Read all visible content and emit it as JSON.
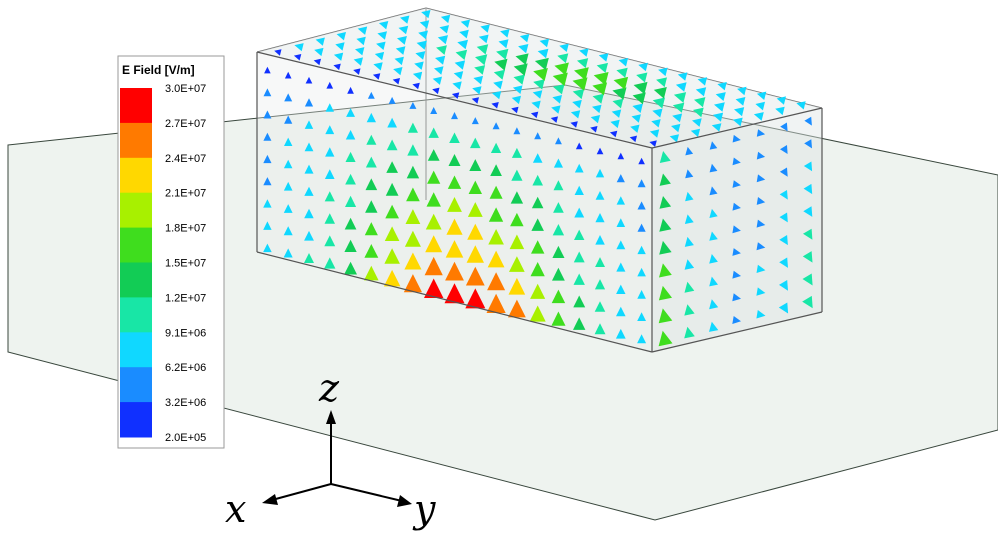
{
  "legend": {
    "title": "E Field [V/m]",
    "ticks": [
      "3.0E+07",
      "2.7E+07",
      "2.4E+07",
      "2.1E+07",
      "1.8E+07",
      "1.5E+07",
      "1.2E+07",
      "9.1E+06",
      "6.2E+06",
      "3.2E+06",
      "2.0E+05"
    ],
    "colors": [
      "#ff0000",
      "#ff7a00",
      "#ffd800",
      "#a8f000",
      "#3fdd1e",
      "#12cc55",
      "#18e6a6",
      "#10d8ff",
      "#1a8cff",
      "#1030ff"
    ]
  },
  "axes": {
    "z": "z",
    "x": "x",
    "y": "y"
  }
}
